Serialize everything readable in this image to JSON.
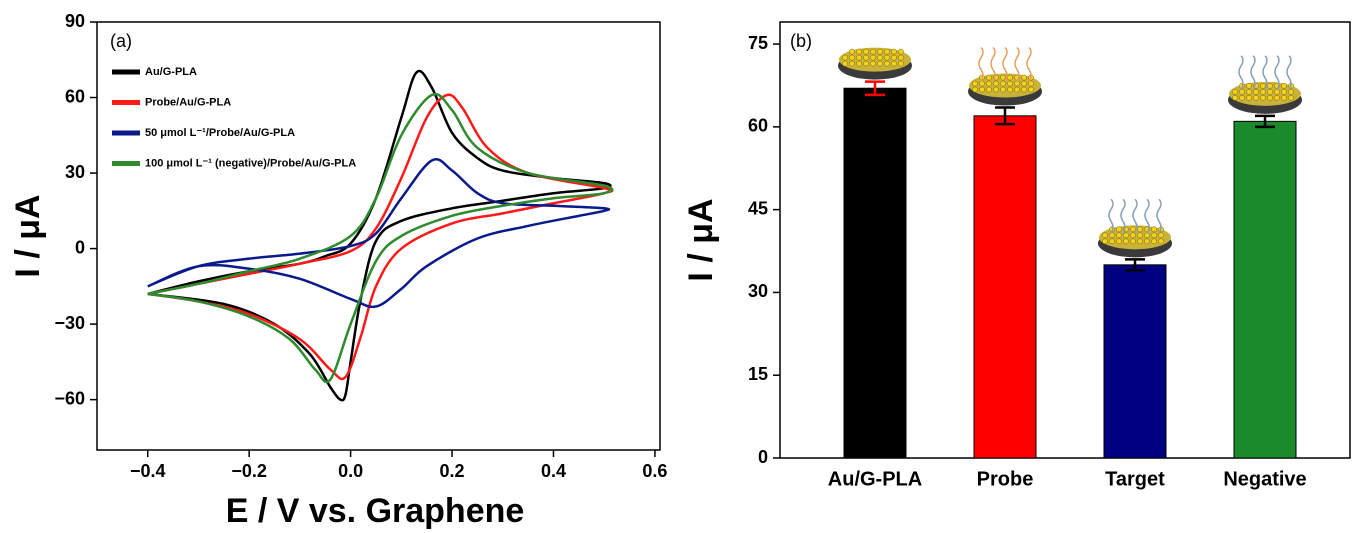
{
  "chart_data": [
    {
      "type": "line",
      "panel_label": "(a)",
      "x_label": "E / V vs. Graphene",
      "y_label": "I / μA",
      "xlim": [
        -0.5,
        0.61
      ],
      "ylim": [
        -80,
        90
      ],
      "xticks": [
        {
          "value": -0.4,
          "label": "−0.4"
        },
        {
          "value": -0.2,
          "label": "−0.2"
        },
        {
          "value": 0,
          "label": "0.0"
        },
        {
          "value": 0.2,
          "label": "0.2"
        },
        {
          "value": 0.4,
          "label": "0.4"
        },
        {
          "value": 0.6,
          "label": "0.6"
        }
      ],
      "yticks": [
        {
          "value": -60,
          "label": "−60"
        },
        {
          "value": -30,
          "label": "−30"
        },
        0,
        30,
        60,
        90
      ],
      "legend": "upper-left",
      "series": [
        {
          "name": "Au/G-PLA",
          "color": "#000000",
          "x": [
            -0.4,
            -0.3,
            -0.2,
            -0.1,
            -0.05,
            0,
            0.05,
            0.1,
            0.13,
            0.16,
            0.2,
            0.25,
            0.3,
            0.4,
            0.5,
            0.5,
            0.4,
            0.3,
            0.2,
            0.1,
            0.05,
            0.02,
            0,
            -0.01,
            -0.02,
            -0.04,
            -0.08,
            -0.15,
            -0.25,
            -0.4
          ],
          "values": [
            -18,
            -13,
            -9,
            -6,
            -3,
            2,
            20,
            52,
            70,
            64,
            46,
            36,
            31,
            28,
            26,
            24,
            22,
            19,
            16,
            11,
            3,
            -20,
            -45,
            -58,
            -60,
            -55,
            -42,
            -30,
            -22,
            -18
          ]
        },
        {
          "name": "Probe/Au/G-PLA",
          "color": "#ff1a1a",
          "x": [
            -0.4,
            -0.3,
            -0.2,
            -0.1,
            0,
            0.05,
            0.1,
            0.15,
            0.19,
            0.22,
            0.27,
            0.35,
            0.5,
            0.5,
            0.4,
            0.3,
            0.2,
            0.1,
            0.05,
            0.02,
            -0.01,
            -0.04,
            -0.1,
            -0.2,
            -0.3,
            -0.4
          ],
          "values": [
            -18,
            -14,
            -10,
            -6,
            -1,
            8,
            28,
            52,
            61,
            56,
            40,
            30,
            24,
            22,
            18,
            14,
            10,
            0,
            -15,
            -35,
            -51,
            -48,
            -36,
            -26,
            -21,
            -18
          ]
        },
        {
          "name": "50 μmol L⁻¹/Probe/Au/G-PLA",
          "color": "#0a1a8c",
          "x": [
            -0.4,
            -0.3,
            -0.2,
            -0.1,
            0,
            0.05,
            0.1,
            0.16,
            0.2,
            0.25,
            0.3,
            0.4,
            0.5,
            0.5,
            0.45,
            0.35,
            0.25,
            0.15,
            0.1,
            0.05,
            0,
            -0.1,
            -0.2,
            -0.3,
            -0.4
          ],
          "values": [
            -15,
            -7,
            -4,
            -2,
            1,
            6,
            20,
            35,
            31,
            22,
            18,
            17,
            16,
            15,
            13,
            9,
            4,
            -7,
            -16,
            -23,
            -20,
            -12,
            -8,
            -7,
            -15
          ]
        },
        {
          "name": "100 μmol L⁻¹ (negative)/Probe/Au/G-PLA",
          "color": "#2e8b2e",
          "x": [
            -0.4,
            -0.3,
            -0.2,
            -0.1,
            0,
            0.05,
            0.1,
            0.16,
            0.2,
            0.25,
            0.35,
            0.5,
            0.5,
            0.4,
            0.3,
            0.2,
            0.1,
            0.05,
            0,
            -0.04,
            -0.07,
            -0.12,
            -0.2,
            -0.3,
            -0.4
          ],
          "values": [
            -18,
            -14,
            -9,
            -4,
            5,
            20,
            45,
            61,
            55,
            40,
            30,
            25,
            22,
            20,
            17,
            13,
            5,
            -5,
            -30,
            -52,
            -48,
            -36,
            -27,
            -21,
            -18
          ]
        }
      ]
    },
    {
      "type": "bar",
      "panel_label": "(b)",
      "y_label": "I / μA",
      "categories": [
        "Au/G-PLA",
        "Probe",
        "Target",
        "Negative"
      ],
      "values": [
        67,
        62,
        35,
        61
      ],
      "errors": [
        1.2,
        1.5,
        1,
        1
      ],
      "colors": [
        "#000000",
        "#ff0000",
        "#000080",
        "#1a8a2a"
      ],
      "error_colors": [
        "#ff0000",
        "#000000",
        "#000000",
        "#000000"
      ],
      "ylim": [
        0,
        79
      ],
      "yticks": [
        0,
        15,
        30,
        45,
        60,
        75
      ]
    }
  ]
}
